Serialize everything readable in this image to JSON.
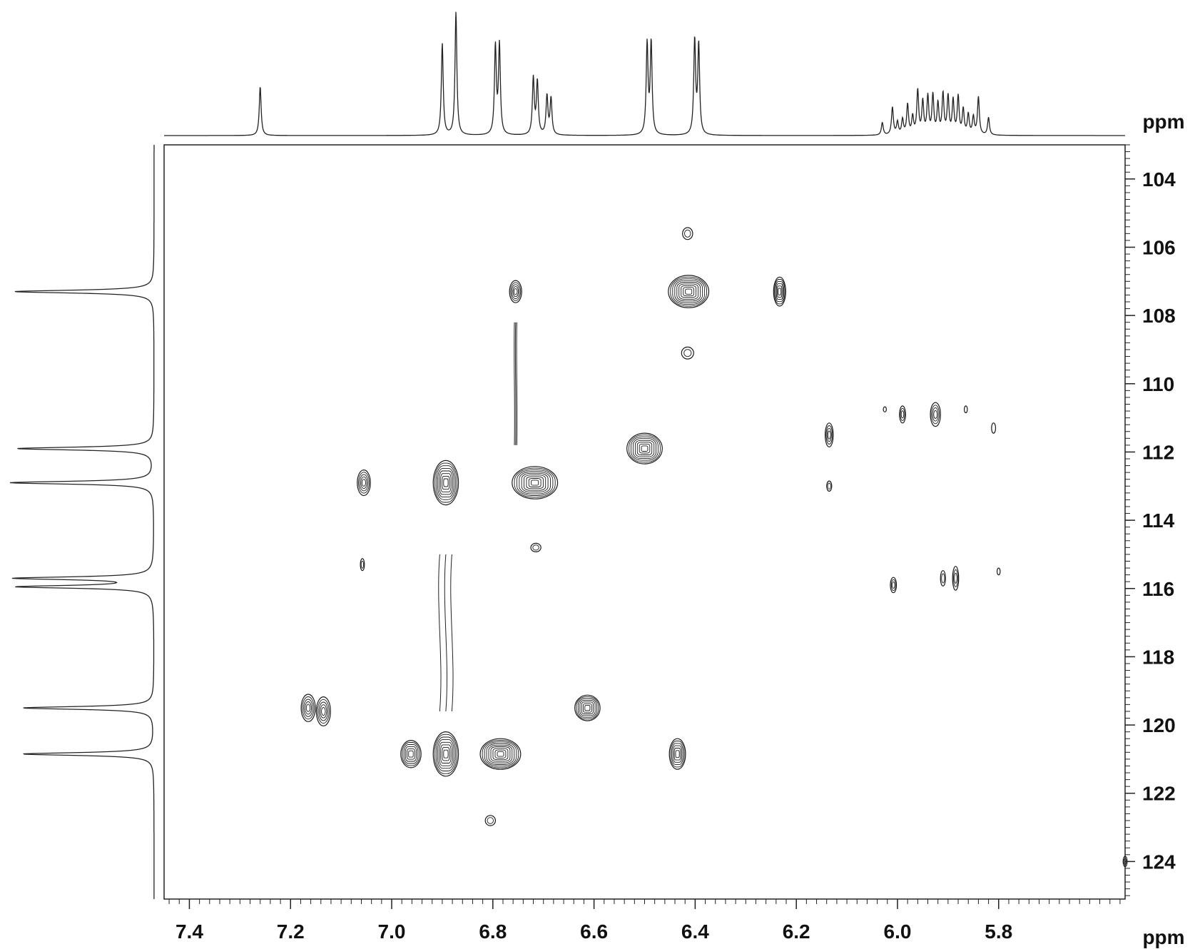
{
  "chart_data": {
    "type": "heatmap",
    "subtype": "2D NMR contour plot",
    "title": "",
    "x_axis": {
      "label": "ppm",
      "range": [
        7.45,
        5.55
      ],
      "reversed": true,
      "major_ticks": [
        7.4,
        7.2,
        7.0,
        6.8,
        6.6,
        6.4,
        6.2,
        6.0,
        5.8
      ],
      "tick_labels": [
        "7.4",
        "7.2",
        "7.0",
        "6.8",
        "6.6",
        "6.4",
        "6.2",
        "6.0",
        "5.8"
      ],
      "minor_step": 0.02
    },
    "y_axis": {
      "label": "ppm",
      "range": [
        103.0,
        125.1
      ],
      "reversed": true,
      "major_ticks": [
        104,
        106,
        108,
        110,
        112,
        114,
        116,
        118,
        120,
        122,
        124
      ],
      "tick_labels": [
        "104",
        "106",
        "108",
        "110",
        "112",
        "114",
        "116",
        "118",
        "120",
        "122",
        "124"
      ],
      "minor_step": 0.2
    },
    "top_projection": {
      "peaks": [
        {
          "ppm": 7.26,
          "height": 0.39
        },
        {
          "ppm": 6.9,
          "height": 0.73
        },
        {
          "ppm": 6.873,
          "height": 0.98
        },
        {
          "ppm": 6.795,
          "height": 0.7
        },
        {
          "ppm": 6.787,
          "height": 0.71
        },
        {
          "ppm": 6.72,
          "height": 0.45
        },
        {
          "ppm": 6.712,
          "height": 0.42
        },
        {
          "ppm": 6.693,
          "height": 0.31
        },
        {
          "ppm": 6.685,
          "height": 0.29
        },
        {
          "ppm": 6.495,
          "height": 0.72
        },
        {
          "ppm": 6.487,
          "height": 0.73
        },
        {
          "ppm": 6.401,
          "height": 0.75
        },
        {
          "ppm": 6.393,
          "height": 0.71
        },
        {
          "ppm": 6.03,
          "height": 0.1
        },
        {
          "ppm": 6.01,
          "height": 0.22
        },
        {
          "ppm": 6.0,
          "height": 0.1
        },
        {
          "ppm": 5.99,
          "height": 0.12
        },
        {
          "ppm": 5.98,
          "height": 0.24
        },
        {
          "ppm": 5.97,
          "height": 0.14
        },
        {
          "ppm": 5.96,
          "height": 0.35
        },
        {
          "ppm": 5.95,
          "height": 0.26
        },
        {
          "ppm": 5.94,
          "height": 0.3
        },
        {
          "ppm": 5.93,
          "height": 0.31
        },
        {
          "ppm": 5.92,
          "height": 0.24
        },
        {
          "ppm": 5.91,
          "height": 0.32
        },
        {
          "ppm": 5.9,
          "height": 0.3
        },
        {
          "ppm": 5.89,
          "height": 0.27
        },
        {
          "ppm": 5.88,
          "height": 0.3
        },
        {
          "ppm": 5.87,
          "height": 0.2
        },
        {
          "ppm": 5.86,
          "height": 0.16
        },
        {
          "ppm": 5.85,
          "height": 0.14
        },
        {
          "ppm": 5.84,
          "height": 0.3
        },
        {
          "ppm": 5.82,
          "height": 0.14
        }
      ]
    },
    "left_projection": {
      "peaks": [
        {
          "ppm": 107.3,
          "height": 0.97
        },
        {
          "ppm": 111.9,
          "height": 0.95
        },
        {
          "ppm": 112.9,
          "height": 1.0
        },
        {
          "ppm": 115.7,
          "height": 0.95
        },
        {
          "ppm": 115.95,
          "height": 0.93
        },
        {
          "ppm": 119.5,
          "height": 0.91
        },
        {
          "ppm": 120.85,
          "height": 0.91
        }
      ]
    },
    "cross_peaks": [
      {
        "x": 6.755,
        "y": 107.3,
        "x_width": 0.012,
        "y_width": 0.65,
        "rings": 5
      },
      {
        "x": 6.413,
        "y": 107.3,
        "x_width": 0.04,
        "y_width": 0.95,
        "rings": 9
      },
      {
        "x": 6.233,
        "y": 107.3,
        "x_width": 0.012,
        "y_width": 0.85,
        "rings": 6
      },
      {
        "x": 6.5,
        "y": 111.9,
        "x_width": 0.035,
        "y_width": 0.9,
        "rings": 8
      },
      {
        "x": 6.717,
        "y": 112.9,
        "x_width": 0.045,
        "y_width": 0.95,
        "rings": 9
      },
      {
        "x": 6.893,
        "y": 112.9,
        "x_width": 0.025,
        "y_width": 1.3,
        "rings": 8
      },
      {
        "x": 7.055,
        "y": 112.9,
        "x_width": 0.013,
        "y_width": 0.75,
        "rings": 5
      },
      {
        "x": 6.135,
        "y": 111.5,
        "x_width": 0.008,
        "y_width": 0.7,
        "rings": 4
      },
      {
        "x": 6.135,
        "y": 113.0,
        "x_width": 0.005,
        "y_width": 0.3,
        "rings": 2
      },
      {
        "x": 5.99,
        "y": 110.9,
        "x_width": 0.006,
        "y_width": 0.5,
        "rings": 3
      },
      {
        "x": 5.925,
        "y": 110.9,
        "x_width": 0.01,
        "y_width": 0.7,
        "rings": 4
      },
      {
        "x": 6.025,
        "y": 110.75,
        "x_width": 0.003,
        "y_width": 0.15,
        "rings": 1
      },
      {
        "x": 5.865,
        "y": 110.75,
        "x_width": 0.003,
        "y_width": 0.2,
        "rings": 1
      },
      {
        "x": 5.81,
        "y": 111.3,
        "x_width": 0.004,
        "y_width": 0.3,
        "rings": 1
      },
      {
        "x": 7.058,
        "y": 115.3,
        "x_width": 0.004,
        "y_width": 0.35,
        "rings": 2
      },
      {
        "x": 6.008,
        "y": 115.9,
        "x_width": 0.006,
        "y_width": 0.45,
        "rings": 3
      },
      {
        "x": 5.91,
        "y": 115.7,
        "x_width": 0.005,
        "y_width": 0.45,
        "rings": 2
      },
      {
        "x": 5.885,
        "y": 115.7,
        "x_width": 0.006,
        "y_width": 0.7,
        "rings": 3
      },
      {
        "x": 5.8,
        "y": 115.5,
        "x_width": 0.003,
        "y_width": 0.2,
        "rings": 1
      },
      {
        "x": 7.165,
        "y": 119.5,
        "x_width": 0.014,
        "y_width": 0.8,
        "rings": 5
      },
      {
        "x": 7.135,
        "y": 119.6,
        "x_width": 0.014,
        "y_width": 0.85,
        "rings": 5
      },
      {
        "x": 6.962,
        "y": 120.85,
        "x_width": 0.02,
        "y_width": 0.8,
        "rings": 6
      },
      {
        "x": 6.893,
        "y": 120.85,
        "x_width": 0.025,
        "y_width": 1.3,
        "rings": 8
      },
      {
        "x": 6.785,
        "y": 120.85,
        "x_width": 0.04,
        "y_width": 0.9,
        "rings": 9
      },
      {
        "x": 6.613,
        "y": 119.5,
        "x_width": 0.025,
        "y_width": 0.75,
        "rings": 7
      },
      {
        "x": 6.435,
        "y": 120.85,
        "x_width": 0.016,
        "y_width": 0.9,
        "rings": 6
      },
      {
        "x": 5.55,
        "y": 124.0,
        "x_width": 0.004,
        "y_width": 0.3,
        "rings": 2
      },
      {
        "x": 6.805,
        "y": 122.8,
        "x_width": 0.01,
        "y_width": 0.3,
        "rings": 2
      },
      {
        "x": 6.715,
        "y": 114.8,
        "x_width": 0.01,
        "y_width": 0.25,
        "rings": 2
      },
      {
        "x": 6.415,
        "y": 109.1,
        "x_width": 0.012,
        "y_width": 0.35,
        "rings": 2
      },
      {
        "x": 6.415,
        "y": 105.6,
        "x_width": 0.01,
        "y_width": 0.35,
        "rings": 2
      }
    ],
    "t1_streaks": [
      {
        "x": 6.893,
        "y_from": 115.0,
        "y_to": 119.6,
        "x_width": 0.02
      },
      {
        "x": 6.755,
        "y_from": 108.2,
        "y_to": 111.8,
        "x_width": 0.004
      }
    ],
    "grid": false,
    "legend": "none"
  }
}
